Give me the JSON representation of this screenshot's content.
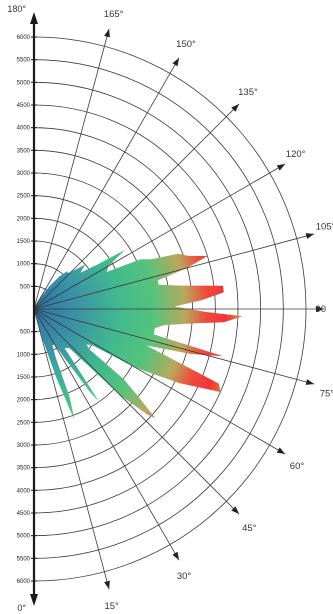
{
  "chart_data": {
    "type": "polar-area",
    "radial_axis": {
      "ticks": [
        500,
        1000,
        1500,
        2000,
        2500,
        3000,
        3500,
        4000,
        4500,
        5000,
        5500,
        6000
      ],
      "range": [
        0,
        6000
      ]
    },
    "angle_axis": {
      "range_deg": [
        0,
        180
      ],
      "labels": [
        {
          "deg": 0,
          "text": "0°"
        },
        {
          "deg": 15,
          "text": "15°"
        },
        {
          "deg": 30,
          "text": "30°"
        },
        {
          "deg": 45,
          "text": "45°"
        },
        {
          "deg": 60,
          "text": "60°"
        },
        {
          "deg": 75,
          "text": "75°"
        },
        {
          "deg": 90,
          "text": "90"
        },
        {
          "deg": 105,
          "text": "105°"
        },
        {
          "deg": 120,
          "text": "120°"
        },
        {
          "deg": 135,
          "text": "135°"
        },
        {
          "deg": 150,
          "text": "150°"
        },
        {
          "deg": 165,
          "text": "165°"
        },
        {
          "deg": 180,
          "text": "180°"
        }
      ]
    },
    "series": [
      {
        "points": [
          [
            0,
            0
          ],
          [
            16,
            700
          ],
          [
            18,
            1600
          ],
          [
            20,
            2600
          ],
          [
            22,
            2100
          ],
          [
            24,
            1200
          ],
          [
            27,
            900
          ],
          [
            30,
            900
          ],
          [
            32,
            1300
          ],
          [
            34,
            2200
          ],
          [
            35,
            2500
          ],
          [
            36,
            1800
          ],
          [
            38,
            1100
          ],
          [
            42,
            1150
          ],
          [
            45,
            2700
          ],
          [
            47,
            3400
          ],
          [
            48,
            3600
          ],
          [
            50,
            3000
          ],
          [
            52,
            2500
          ],
          [
            54,
            1500
          ],
          [
            56,
            1400
          ],
          [
            58,
            1500
          ],
          [
            60,
            2600
          ],
          [
            63,
            3600
          ],
          [
            66,
            4500
          ],
          [
            68,
            4400
          ],
          [
            70,
            3300
          ],
          [
            72,
            2600
          ],
          [
            74,
            3600
          ],
          [
            76,
            4300
          ],
          [
            78,
            2700
          ],
          [
            81,
            2700
          ],
          [
            83,
            2900
          ],
          [
            85,
            3600
          ],
          [
            86,
            4200
          ],
          [
            88,
            4600
          ],
          [
            89,
            3800
          ],
          [
            91,
            3100
          ],
          [
            93,
            3700
          ],
          [
            95,
            4200
          ],
          [
            97,
            4200
          ],
          [
            99,
            3300
          ],
          [
            101,
            2800
          ],
          [
            103,
            2800
          ],
          [
            105,
            3500
          ],
          [
            107,
            4000
          ],
          [
            109,
            3600
          ],
          [
            111,
            3400
          ],
          [
            113,
            2800
          ],
          [
            115,
            2600
          ],
          [
            117,
            1800
          ],
          [
            120,
            1900
          ],
          [
            123,
            2400
          ],
          [
            125,
            1700
          ],
          [
            128,
            1300
          ],
          [
            131,
            1500
          ],
          [
            133,
            1300
          ],
          [
            136,
            1100
          ],
          [
            139,
            1100
          ],
          [
            142,
            900
          ],
          [
            146,
            600
          ],
          [
            150,
            300
          ],
          [
            155,
            150
          ],
          [
            180,
            0
          ]
        ]
      }
    ]
  }
}
